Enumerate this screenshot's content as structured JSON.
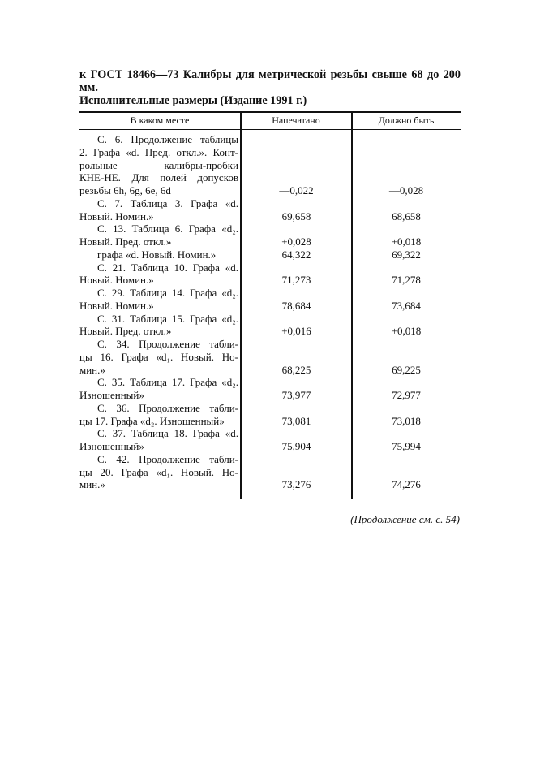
{
  "title": {
    "line1": "к ГОСТ 18466—73 Калибры для метрической резьбы свыше 68 до 200 мм.",
    "line2": "Исполнительные размеры (Издание 1991 г.)"
  },
  "table": {
    "headers": [
      "В каком месте",
      "Напечатано",
      "Должно быть"
    ],
    "lines": [
      {
        "text": "С. 6. Продолжение таблицы",
        "ind": true,
        "j": true
      },
      {
        "text": "2. Графа «d. Пред. откл.». Конт-",
        "j": true
      },
      {
        "text": "рольные калибры-пробки",
        "j": true
      },
      {
        "text": "КНЕ-НЕ. Для полей допусков",
        "j": true
      },
      {
        "text": "резьбы 6h, 6g, 6e, 6d",
        "printed": "—0,022",
        "correct": "—0,028"
      },
      {
        "text": "С. 7. Таблица 3. Графа «d.",
        "ind": true,
        "j": true
      },
      {
        "text": "Новый. Номин.»",
        "printed": "69,658",
        "correct": "68,658"
      },
      {
        "text": "С. 13. Таблица 6. Графа «d₂.",
        "ind": true,
        "j": true
      },
      {
        "text": "Новый. Пред. откл.»",
        "printed": "+0,028",
        "correct": "+0,018"
      },
      {
        "text": "графа «d. Новый. Номин.»",
        "ind": true,
        "printed": "64,322",
        "correct": "69,322"
      },
      {
        "text": "С. 21. Таблица 10. Графа «d.",
        "ind": true,
        "j": true
      },
      {
        "text": "Новый. Номин.»",
        "printed": "71,273",
        "correct": "71,278"
      },
      {
        "text": "С. 29. Таблица 14. Графа «d₂.",
        "ind": true,
        "j": true
      },
      {
        "text": "Новый. Номин.»",
        "printed": "78,684",
        "correct": "73,684"
      },
      {
        "text": "С. 31. Таблица 15. Графа «d₂.",
        "ind": true,
        "j": true
      },
      {
        "text": "Новый. Пред. откл.»",
        "printed": "+0,016",
        "correct": "+0,018"
      },
      {
        "text": "С. 34. Продолжение табли-",
        "ind": true,
        "j": true
      },
      {
        "text": "цы 16. Графа «d₁. Новый. Но-",
        "j": true
      },
      {
        "text": "мин.»",
        "printed": "68,225",
        "correct": "69,225"
      },
      {
        "text": "С. 35. Таблица 17. Графа «d₂.",
        "ind": true,
        "j": true
      },
      {
        "text": "Изношенный»",
        "printed": "73,977",
        "correct": "72,977"
      },
      {
        "text": "С. 36. Продолжение табли-",
        "ind": true,
        "j": true
      },
      {
        "text": "цы 17. Графа «d₂. Изношенный»",
        "printed": "73,081",
        "correct": "73,018"
      },
      {
        "text": "С. 37. Таблица 18. Графа «d.",
        "ind": true,
        "j": true
      },
      {
        "text": "Изношенный»",
        "printed": "75,904",
        "correct": "75,994"
      },
      {
        "text": "С. 42. Продолжение табли-",
        "ind": true,
        "j": true
      },
      {
        "text": "цы 20. Графа «d₁. Новый. Но-",
        "j": true
      },
      {
        "text": "мин.»",
        "printed": "73,276",
        "correct": "74,276"
      }
    ]
  },
  "footer": "(Продолжение см. с. 54)"
}
